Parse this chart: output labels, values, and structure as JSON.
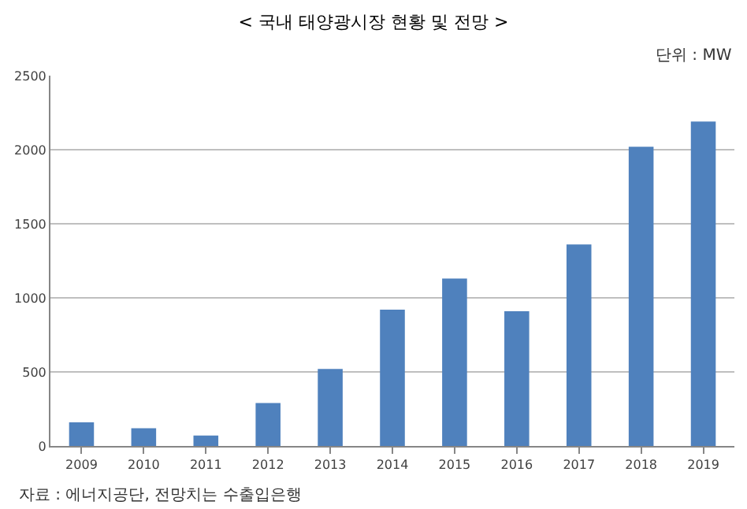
{
  "chart_data": {
    "type": "bar",
    "title": "< 국내 태양광시장 현황 및 전망 >",
    "categories": [
      "2009",
      "2010",
      "2011",
      "2012",
      "2013",
      "2014",
      "2015",
      "2016",
      "2017",
      "2018",
      "2019"
    ],
    "values": [
      160,
      120,
      70,
      290,
      520,
      920,
      1130,
      910,
      1360,
      2020,
      2190
    ],
    "color": "#4f81bd",
    "ylim": [
      0,
      2500
    ],
    "yticks": [
      0,
      500,
      1000,
      1500,
      2000,
      2500
    ],
    "grid": "y",
    "annotations": [
      "단위 : MW",
      "자료 : 에너지공단, 전망치는 수출입은행"
    ]
  }
}
